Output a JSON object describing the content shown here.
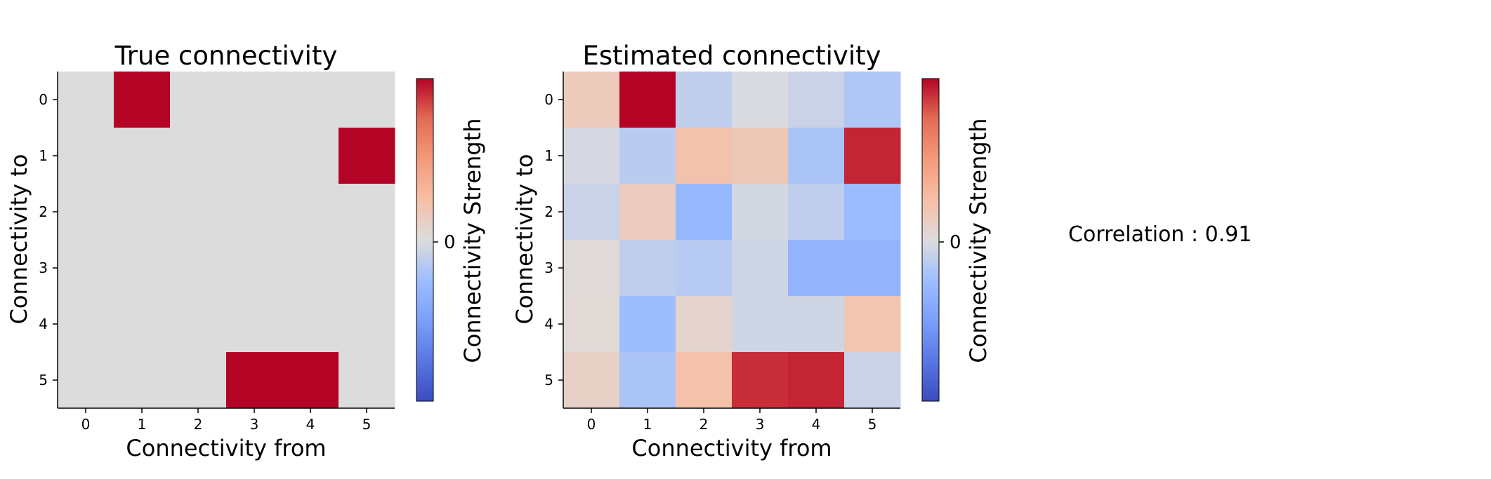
{
  "chart_data": [
    {
      "type": "heatmap",
      "title": "True connectivity",
      "xlabel": "Connectivity from",
      "ylabel": "Connectivity to",
      "x_ticks": [
        "0",
        "1",
        "2",
        "3",
        "4",
        "5"
      ],
      "y_ticks": [
        "0",
        "1",
        "2",
        "3",
        "4",
        "5"
      ],
      "colormap": "coolwarm",
      "vmin": -1,
      "vmax": 1,
      "values": [
        [
          0,
          1,
          0,
          0,
          0,
          0
        ],
        [
          0,
          0,
          0,
          0,
          0,
          1
        ],
        [
          0,
          0,
          0,
          0,
          0,
          0
        ],
        [
          0,
          0,
          0,
          0,
          0,
          0
        ],
        [
          0,
          0,
          0,
          0,
          0,
          0
        ],
        [
          0,
          0,
          0,
          1,
          1,
          0
        ]
      ],
      "colorbar": {
        "label": "Connectivity Strength",
        "ticks": [
          0
        ],
        "tick_labels": [
          "0"
        ]
      }
    },
    {
      "type": "heatmap",
      "title": "Estimated connectivity",
      "xlabel": "Connectivity from",
      "ylabel": "Connectivity to",
      "x_ticks": [
        "0",
        "1",
        "2",
        "3",
        "4",
        "5"
      ],
      "y_ticks": [
        "0",
        "1",
        "2",
        "3",
        "4",
        "5"
      ],
      "colormap": "coolwarm",
      "vmin": -1,
      "vmax": 1,
      "values": [
        [
          0.15,
          1.0,
          -0.12,
          -0.02,
          -0.08,
          -0.18
        ],
        [
          -0.03,
          -0.14,
          0.22,
          0.17,
          -0.2,
          0.92
        ],
        [
          -0.08,
          0.14,
          -0.3,
          -0.04,
          -0.12,
          -0.27
        ],
        [
          0.02,
          -0.12,
          -0.15,
          -0.06,
          -0.33,
          -0.33
        ],
        [
          0.03,
          -0.26,
          0.07,
          -0.06,
          -0.06,
          0.19
        ],
        [
          0.1,
          -0.2,
          0.23,
          0.9,
          0.92,
          -0.08
        ]
      ],
      "colorbar": {
        "label": "Connectivity Strength",
        "ticks": [
          0
        ],
        "tick_labels": [
          "0"
        ]
      }
    }
  ],
  "annotation": {
    "text": "Correlation : 0.91"
  }
}
